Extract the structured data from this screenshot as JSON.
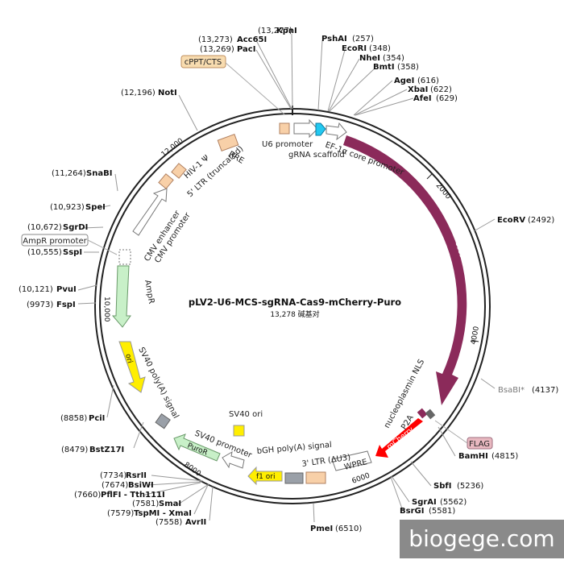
{
  "plasmid": {
    "name": "pLV2-U6-MCS-sgRNA-Cas9-mCherry-Puro",
    "size_text": "13,278 碱基对",
    "length": 13278
  },
  "ticks": [
    "2000",
    "4000",
    "6000",
    "8000",
    "10,000",
    "12,000"
  ],
  "sites": [
    {
      "name": "KpnI",
      "pos": "(13,277)"
    },
    {
      "name": "Acc65I",
      "pos": "(13,273)"
    },
    {
      "name": "PacI",
      "pos": "(13,269)"
    },
    {
      "name": "PshAI",
      "pos": "(257)"
    },
    {
      "name": "EcoRI",
      "pos": "(348)"
    },
    {
      "name": "NheI",
      "pos": "(354)"
    },
    {
      "name": "BmtI",
      "pos": "(358)"
    },
    {
      "name": "AgeI",
      "pos": "(616)"
    },
    {
      "name": "XbaI",
      "pos": "(622)"
    },
    {
      "name": "AfeI",
      "pos": "(629)"
    },
    {
      "name": "NotI",
      "pos": "(12,196)"
    },
    {
      "name": "SnaBI",
      "pos": "(11,264)"
    },
    {
      "name": "SpeI",
      "pos": "(10,923)"
    },
    {
      "name": "SgrDI",
      "pos": "(10,672)"
    },
    {
      "name": "SspI",
      "pos": "(10,555)"
    },
    {
      "name": "PvuI",
      "pos": "(10,121)"
    },
    {
      "name": "FspI",
      "pos": "(9973)"
    },
    {
      "name": "PciI",
      "pos": "(8858)"
    },
    {
      "name": "BstZ17I",
      "pos": "(8479)"
    },
    {
      "name": "RsrII",
      "pos": "(7734)"
    },
    {
      "name": "BsiWI",
      "pos": "(7674)"
    },
    {
      "name": "PflFI - Tth111I",
      "pos": "(7660)"
    },
    {
      "name": "SmaI",
      "pos": "(7581)"
    },
    {
      "name": "TspMI - XmaI",
      "pos": "(7579)"
    },
    {
      "name": "AvrII",
      "pos": "(7558)"
    },
    {
      "name": "EcoRV",
      "pos": "(2492)"
    },
    {
      "name": "BsaBI*",
      "pos": "(4137)"
    },
    {
      "name": "BamHI",
      "pos": "(4815)"
    },
    {
      "name": "SbfI",
      "pos": "(5236)"
    },
    {
      "name": "SgrAI",
      "pos": "(5562)"
    },
    {
      "name": "BsrGI",
      "pos": "(5581)"
    },
    {
      "name": "PmeI",
      "pos": "(6510)"
    }
  ],
  "features": {
    "cppt_cts": "cPPT/CTS",
    "u6_promoter": "U6 promoter",
    "grna_scaffold": "gRNA scaffold",
    "ef1a": "EF-1α core promoter",
    "cas9": "Cas9",
    "nls": "nucleoplasmin NLS",
    "p2a": "P2A",
    "flag": "FLAG",
    "mcherry": "mCherry",
    "wpre": "WPRE",
    "ltr3": "3' LTR (ΔU3)",
    "bgh": "bGH poly(A) signal",
    "sv40_ori_1": "SV40 ori",
    "f1_ori": "f1 ori",
    "sv40_promoter": "SV40 promoter",
    "puror": "PuroR",
    "sv40_polya": "SV40 poly(A) signal",
    "ori": "ori",
    "ampr": "AmpR",
    "ampr_promoter": "AmpR promoter",
    "cmv_enhancer": "CMV enhancer",
    "cmv_promoter": "CMV promoter",
    "ltr5": "5' LTR (truncated)",
    "hiv_psi": "HIV-1 Ψ",
    "rre": "RRE"
  },
  "watermark": "biogege.com",
  "colors": {
    "cas9": "#8b2a5a",
    "mcherry": "#ff0000",
    "puror": "#c8f0c8",
    "ampr": "#c8f0c8",
    "ori": "#ffee00",
    "f1_ori": "#ffee00",
    "sv40_ori": "#ffee00",
    "grna_scaffold": "#22c8f0",
    "peach": "#f8d0a8",
    "grey": "#9aa0a8",
    "flag_badge": "#e8b8c0",
    "cppt_badge": "#f8dcb0"
  }
}
